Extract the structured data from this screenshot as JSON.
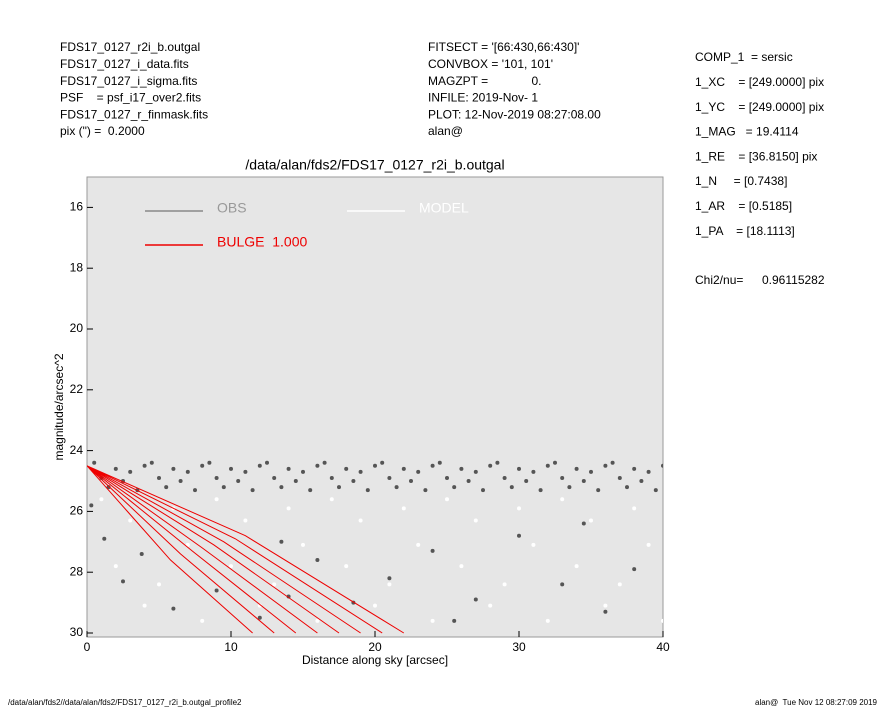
{
  "header_left": [
    "FDS17_0127_r2i_b.outgal",
    "FDS17_0127_i_data.fits",
    "FDS17_0127_i_sigma.fits",
    "PSF    = psf_i17_over2.fits",
    "FDS17_0127_r_finmask.fits",
    "pix (\") =  0.2000"
  ],
  "header_middle": [
    "FITSECT = '[66:430,66:430]'",
    "CONVBOX = '101, 101'",
    "MAGZPT =             0.",
    "INFILE: 2019-Nov- 1",
    "PLOT: 12-Nov-2019 08:27:08.00",
    "alan@"
  ],
  "header_right": [
    "COMP_1  = sersic",
    "1_XC    = [249.0000] pix",
    "1_YC    = [249.0000] pix",
    "1_MAG   = 19.4114",
    "1_RE    = [36.8150] pix",
    "1_N     = [0.7438]",
    "1_AR    = [0.5185]",
    "1_PA    = [18.1113]"
  ],
  "chi2_label": "Chi2/nu=",
  "chi2_value": "0.96115282",
  "footer_left": "/data/alan/fds2//data/alan/fds2/FDS17_0127_r2i_b.outgal_profile2",
  "footer_right": "alan@  Tue Nov 12 08:27:09 2019",
  "chart_data": {
    "type": "scatter",
    "title": "/data/alan/fds2/FDS17_0127_r2i_b.outgal",
    "x_label": "Distance along sky [arcsec]",
    "y_label": "magnitude/arcsec^2",
    "xlim": [
      0,
      40
    ],
    "xticks": [
      0,
      10,
      20,
      30,
      40
    ],
    "ylim": [
      15,
      30
    ],
    "yticks": [
      16,
      18,
      20,
      22,
      24,
      26,
      28,
      30
    ],
    "y_inverted": true,
    "series": [
      {
        "name": "OBS",
        "color": "#555555",
        "mode": "points",
        "x": [
          0.5,
          1,
          1.5,
          2,
          2.5,
          3,
          3.5,
          4,
          4.5,
          5,
          5.5,
          6,
          6.5,
          7,
          7.5,
          8,
          8.5,
          9,
          9.5,
          10,
          10.5,
          11,
          11.5,
          12,
          12.5,
          13,
          13.5,
          14,
          14.5,
          15,
          15.5,
          16,
          16.5,
          17,
          17.5,
          18,
          18.5,
          19,
          19.5,
          20,
          20.5,
          21,
          21.5,
          22,
          22.5,
          23,
          23.5,
          24,
          24.5,
          25,
          25.5,
          26,
          26.5,
          27,
          27.5,
          28,
          28.5,
          29,
          29.5,
          30,
          30.5,
          31,
          31.5,
          32,
          32.5,
          33,
          33.5,
          34,
          34.5,
          35,
          35.5,
          36,
          36.5,
          37,
          37.5,
          38,
          38.5,
          39,
          39.5,
          40,
          0.3,
          1.2,
          2.5,
          3.8,
          6,
          9,
          12,
          14,
          16,
          18.5,
          21,
          24,
          27,
          30,
          33,
          36,
          38,
          13.5,
          25.5,
          34.5
        ],
        "values": [
          24.4,
          24.9,
          25.2,
          24.6,
          25.0,
          24.7,
          25.3,
          24.5,
          24.4,
          24.9,
          25.2,
          24.6,
          25.0,
          24.7,
          25.3,
          24.5,
          24.4,
          24.9,
          25.2,
          24.6,
          25.0,
          24.7,
          25.3,
          24.5,
          24.4,
          24.9,
          25.2,
          24.6,
          25.0,
          24.7,
          25.3,
          24.5,
          24.4,
          24.9,
          25.2,
          24.6,
          25.0,
          24.7,
          25.3,
          24.5,
          24.4,
          24.9,
          25.2,
          24.6,
          25.0,
          24.7,
          25.3,
          24.5,
          24.4,
          24.9,
          25.2,
          24.6,
          25.0,
          24.7,
          25.3,
          24.5,
          24.4,
          24.9,
          25.2,
          24.6,
          25.0,
          24.7,
          25.3,
          24.5,
          24.4,
          24.9,
          25.2,
          24.6,
          25.0,
          24.7,
          25.3,
          24.5,
          24.4,
          24.9,
          25.2,
          24.6,
          25.0,
          24.7,
          25.3,
          24.5,
          25.8,
          26.9,
          28.3,
          27.4,
          29.2,
          28.6,
          29.5,
          28.8,
          27.6,
          29.0,
          28.2,
          27.3,
          28.9,
          26.8,
          28.4,
          29.3,
          27.9,
          27.0,
          29.6,
          26.4
        ]
      },
      {
        "name": "MODEL",
        "color": "#ffffff",
        "mode": "points",
        "x": [
          1,
          2,
          3,
          4,
          5,
          6,
          7,
          8,
          9,
          10,
          11,
          12,
          13,
          14,
          15,
          16,
          17,
          18,
          19,
          20,
          21,
          22,
          23,
          24,
          25,
          26,
          27,
          28,
          29,
          30,
          31,
          32,
          33,
          34,
          35,
          36,
          37,
          38,
          39,
          40
        ],
        "values": [
          25.6,
          27.8,
          26.3,
          29.1,
          28.4,
          25.9,
          27.1,
          29.6,
          25.6,
          27.8,
          26.3,
          29.1,
          28.4,
          25.9,
          27.1,
          29.6,
          25.6,
          27.8,
          26.3,
          29.1,
          28.4,
          25.9,
          27.1,
          29.6,
          25.6,
          27.8,
          26.3,
          29.1,
          28.4,
          25.9,
          27.1,
          29.6,
          25.6,
          27.8,
          26.3,
          29.1,
          28.4,
          25.9,
          27.1,
          29.6
        ]
      },
      {
        "name": "BULGE  1.000",
        "color": "#ee0000",
        "mode": "line",
        "x": [
          0,
          5.8,
          11.5,
          null,
          0,
          6.5,
          13,
          null,
          0,
          7.3,
          14.5,
          null,
          0,
          8,
          16,
          null,
          0,
          8.8,
          17.5,
          null,
          0,
          9.5,
          19,
          null,
          0,
          10.3,
          20.5,
          null,
          0,
          11,
          22
        ],
        "values": [
          24.5,
          27.6,
          30,
          null,
          24.5,
          27.4,
          30,
          null,
          24.5,
          27.3,
          30,
          null,
          24.5,
          27.2,
          30,
          null,
          24.5,
          27.1,
          30,
          null,
          24.5,
          27.0,
          30,
          null,
          24.5,
          26.9,
          30,
          null,
          24.5,
          26.8,
          30
        ]
      }
    ]
  }
}
